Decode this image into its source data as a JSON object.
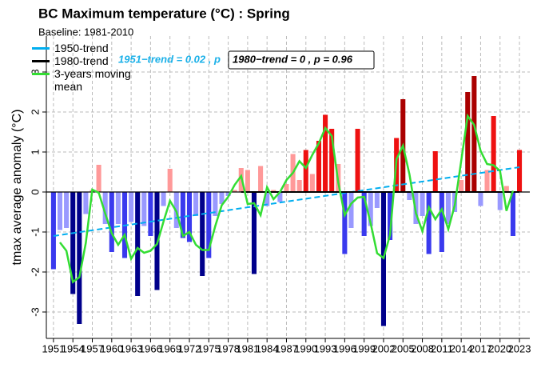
{
  "chart_data": {
    "type": "bar",
    "title": "BC Maximum temperature (°C) : Spring",
    "subtitle": "Baseline: 1981-2010",
    "ylabel": "tmax average anomaly (°C)",
    "x": [
      1951,
      1952,
      1953,
      1954,
      1955,
      1956,
      1957,
      1958,
      1959,
      1960,
      1961,
      1962,
      1963,
      1964,
      1965,
      1966,
      1967,
      1968,
      1969,
      1970,
      1971,
      1972,
      1973,
      1974,
      1975,
      1976,
      1977,
      1978,
      1979,
      1980,
      1981,
      1982,
      1983,
      1984,
      1985,
      1986,
      1987,
      1988,
      1989,
      1990,
      1991,
      1992,
      1993,
      1994,
      1995,
      1996,
      1997,
      1998,
      1999,
      2000,
      2001,
      2002,
      2003,
      2004,
      2005,
      2006,
      2007,
      2008,
      2009,
      2010,
      2011,
      2012,
      2013,
      2014,
      2015,
      2016,
      2017,
      2018,
      2019,
      2020,
      2021,
      2022,
      2023
    ],
    "values": [
      -1.93,
      -0.95,
      -0.9,
      -2.55,
      -3.3,
      -0.55,
      0.05,
      0.68,
      -0.8,
      -1.5,
      -0.8,
      -1.65,
      -0.75,
      -2.6,
      -0.85,
      -1.1,
      -2.45,
      -0.35,
      0.58,
      -0.9,
      -1.15,
      -1.25,
      -0.6,
      -2.1,
      -1.65,
      -0.6,
      -0.3,
      -0.1,
      0.05,
      0.6,
      0.55,
      -2.05,
      0.65,
      -0.35,
      0.05,
      -0.25,
      0.2,
      0.95,
      0.3,
      1.05,
      0.45,
      1.28,
      1.93,
      1.58,
      0.7,
      -1.55,
      -0.9,
      1.58,
      -1.1,
      -0.85,
      -0.4,
      -3.35,
      -1.2,
      1.35,
      2.32,
      -0.2,
      -0.8,
      -0.6,
      -1.55,
      1.02,
      -1.5,
      -0.8,
      -0.5,
      0.3,
      2.5,
      2.9,
      -0.35,
      0.55,
      1.9,
      -0.45,
      0.15,
      -1.1,
      1.05
    ],
    "bar_colors": {
      "negative": [
        "#9999ff",
        "#3a3aee",
        "#00008b"
      ],
      "positive": [
        "#ff9999",
        "#ee1111",
        "#aa0000"
      ],
      "breaks": [
        1,
        2
      ]
    },
    "series": [
      {
        "name": "1950-trend",
        "color": "#00aeef",
        "dash": true,
        "x": [
          1951,
          2023
        ],
        "values": [
          -1.1,
          0.62
        ]
      },
      {
        "name": "1980-trend",
        "color": "#000000",
        "dash": false,
        "x": [
          1980,
          2023
        ],
        "values": [
          0,
          0
        ]
      },
      {
        "name": "3-years moving mean",
        "color": "#33dd33",
        "dash": false,
        "x": [
          1951,
          1952,
          1953,
          1954,
          1955,
          1956,
          1957,
          1958,
          1959,
          1960,
          1961,
          1962,
          1963,
          1964,
          1965,
          1966,
          1967,
          1968,
          1969,
          1970,
          1971,
          1972,
          1973,
          1974,
          1975,
          1976,
          1977,
          1978,
          1979,
          1980,
          1981,
          1982,
          1983,
          1984,
          1985,
          1986,
          1987,
          1988,
          1989,
          1990,
          1991,
          1992,
          1993,
          1994,
          1995,
          1996,
          1997,
          1998,
          1999,
          2000,
          2001,
          2002,
          2003,
          2004,
          2005,
          2006,
          2007,
          2008,
          2009,
          2010,
          2011,
          2012,
          2013,
          2014,
          2015,
          2016,
          2017,
          2018,
          2019,
          2020,
          2021,
          2022,
          2023
        ],
        "values": [
          null,
          -1.26,
          -1.47,
          -2.25,
          -2.13,
          -1.27,
          0.06,
          -0.02,
          -0.54,
          -1.03,
          -1.32,
          -1.07,
          -1.67,
          -1.4,
          -1.52,
          -1.47,
          -1.3,
          -0.74,
          -0.22,
          -0.49,
          -1.1,
          -1.0,
          -1.32,
          -1.45,
          -1.45,
          -0.85,
          -0.33,
          -0.12,
          0.18,
          0.4,
          -0.3,
          -0.28,
          -0.58,
          0.12,
          -0.18,
          0,
          0.3,
          0.48,
          0.77,
          0.6,
          0.93,
          1.22,
          1.6,
          1.4,
          0.24,
          -0.58,
          -0.29,
          -0.14,
          -0.12,
          -0.78,
          -1.53,
          -1.65,
          -1.07,
          0.82,
          1.16,
          0.44,
          -0.53,
          -0.98,
          -0.38,
          -0.68,
          -0.43,
          -0.93,
          -0.33,
          0.77,
          1.9,
          1.68,
          1.03,
          0.7,
          0.67,
          0.53,
          -0.47,
          0.03,
          null
        ]
      }
    ],
    "annotations": [
      "1951−trend = 0.02 , p",
      "1980−trend = 0 , p = 0.96"
    ],
    "xlim": [
      1949.9,
      2024.6
    ],
    "ylim": [
      -3.66,
      3.9
    ],
    "xticks": [
      1951,
      1954,
      1957,
      1960,
      1963,
      1966,
      1969,
      1972,
      1975,
      1978,
      1981,
      1984,
      1987,
      1990,
      1993,
      1996,
      1999,
      2002,
      2005,
      2008,
      2011,
      2014,
      2017,
      2020,
      2023
    ],
    "yticks": [
      -3,
      -2,
      -1,
      0,
      1,
      2,
      3
    ],
    "grid": true
  }
}
